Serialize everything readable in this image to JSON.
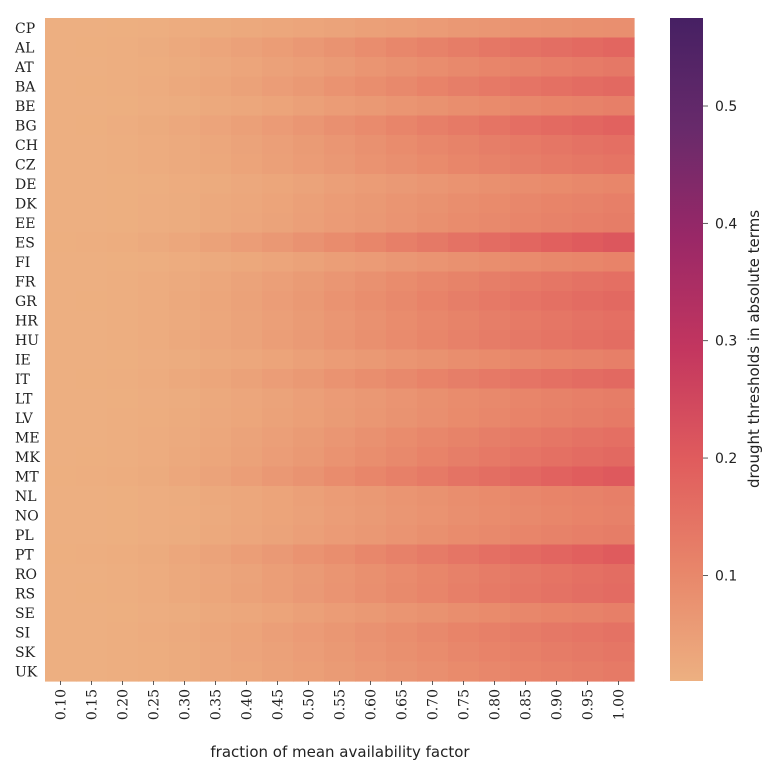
{
  "chart_data": {
    "type": "heatmap",
    "x_categories": [
      "0.10",
      "0.15",
      "0.20",
      "0.25",
      "0.30",
      "0.35",
      "0.40",
      "0.45",
      "0.50",
      "0.55",
      "0.60",
      "0.65",
      "0.70",
      "0.75",
      "0.80",
      "0.85",
      "0.90",
      "0.95",
      "1.00"
    ],
    "y_categories": [
      "CP",
      "AL",
      "AT",
      "BA",
      "BE",
      "BG",
      "CH",
      "CZ",
      "DE",
      "DK",
      "EE",
      "ES",
      "FI",
      "FR",
      "GR",
      "HR",
      "HU",
      "IE",
      "IT",
      "LT",
      "LV",
      "ME",
      "MK",
      "MT",
      "NL",
      "NO",
      "PL",
      "PT",
      "RO",
      "RS",
      "SE",
      "SI",
      "SK",
      "UK"
    ],
    "row_max": [
      0.085,
      0.175,
      0.135,
      0.17,
      0.12,
      0.185,
      0.155,
      0.145,
      0.105,
      0.12,
      0.125,
      0.21,
      0.11,
      0.155,
      0.17,
      0.155,
      0.16,
      0.12,
      0.17,
      0.125,
      0.13,
      0.155,
      0.17,
      0.205,
      0.12,
      0.115,
      0.125,
      0.2,
      0.16,
      0.165,
      0.12,
      0.15,
      0.14,
      0.13
    ],
    "row_min": 0.012,
    "values": [
      [
        0.012,
        0.012,
        0.013,
        0.015,
        0.018,
        0.021,
        0.025,
        0.03,
        0.034,
        0.04,
        0.045,
        0.051,
        0.057,
        0.063,
        0.068,
        0.074,
        0.078,
        0.082,
        0.085
      ],
      [
        0.012,
        0.013,
        0.015,
        0.02,
        0.026,
        0.034,
        0.043,
        0.053,
        0.064,
        0.076,
        0.088,
        0.101,
        0.113,
        0.125,
        0.137,
        0.148,
        0.158,
        0.167,
        0.175
      ],
      [
        0.012,
        0.012,
        0.014,
        0.017,
        0.022,
        0.028,
        0.035,
        0.043,
        0.051,
        0.06,
        0.07,
        0.079,
        0.089,
        0.098,
        0.106,
        0.114,
        0.121,
        0.129,
        0.135
      ],
      [
        0.012,
        0.013,
        0.015,
        0.019,
        0.025,
        0.033,
        0.042,
        0.052,
        0.062,
        0.074,
        0.086,
        0.098,
        0.11,
        0.122,
        0.133,
        0.144,
        0.154,
        0.162,
        0.17
      ],
      [
        0.012,
        0.012,
        0.013,
        0.016,
        0.02,
        0.025,
        0.031,
        0.038,
        0.046,
        0.054,
        0.062,
        0.07,
        0.078,
        0.086,
        0.094,
        0.101,
        0.108,
        0.114,
        0.12
      ],
      [
        0.012,
        0.013,
        0.016,
        0.021,
        0.028,
        0.036,
        0.046,
        0.057,
        0.068,
        0.081,
        0.093,
        0.106,
        0.119,
        0.132,
        0.145,
        0.157,
        0.167,
        0.177,
        0.185
      ],
      [
        0.012,
        0.012,
        0.014,
        0.018,
        0.024,
        0.031,
        0.039,
        0.048,
        0.058,
        0.069,
        0.079,
        0.09,
        0.101,
        0.112,
        0.122,
        0.131,
        0.14,
        0.148,
        0.155
      ],
      [
        0.012,
        0.012,
        0.014,
        0.018,
        0.023,
        0.029,
        0.037,
        0.045,
        0.054,
        0.064,
        0.074,
        0.084,
        0.094,
        0.104,
        0.113,
        0.122,
        0.13,
        0.138,
        0.145
      ],
      [
        0.012,
        0.012,
        0.013,
        0.015,
        0.018,
        0.022,
        0.027,
        0.033,
        0.04,
        0.047,
        0.054,
        0.061,
        0.068,
        0.075,
        0.082,
        0.088,
        0.094,
        0.1,
        0.105
      ],
      [
        0.012,
        0.012,
        0.013,
        0.016,
        0.02,
        0.025,
        0.031,
        0.038,
        0.046,
        0.054,
        0.062,
        0.07,
        0.078,
        0.086,
        0.094,
        0.101,
        0.108,
        0.114,
        0.12
      ],
      [
        0.012,
        0.012,
        0.013,
        0.016,
        0.02,
        0.026,
        0.032,
        0.04,
        0.047,
        0.056,
        0.064,
        0.073,
        0.082,
        0.09,
        0.098,
        0.106,
        0.113,
        0.12,
        0.125
      ],
      [
        0.013,
        0.014,
        0.017,
        0.023,
        0.031,
        0.041,
        0.052,
        0.064,
        0.077,
        0.091,
        0.105,
        0.12,
        0.134,
        0.149,
        0.163,
        0.176,
        0.189,
        0.2,
        0.21
      ],
      [
        0.012,
        0.012,
        0.013,
        0.015,
        0.019,
        0.023,
        0.029,
        0.035,
        0.042,
        0.05,
        0.057,
        0.065,
        0.072,
        0.08,
        0.087,
        0.093,
        0.1,
        0.105,
        0.11
      ],
      [
        0.012,
        0.012,
        0.014,
        0.018,
        0.024,
        0.031,
        0.039,
        0.048,
        0.058,
        0.069,
        0.079,
        0.09,
        0.101,
        0.112,
        0.122,
        0.131,
        0.14,
        0.148,
        0.155
      ],
      [
        0.012,
        0.013,
        0.015,
        0.019,
        0.025,
        0.033,
        0.042,
        0.052,
        0.062,
        0.074,
        0.086,
        0.098,
        0.11,
        0.122,
        0.133,
        0.144,
        0.154,
        0.162,
        0.17
      ],
      [
        0.012,
        0.012,
        0.014,
        0.018,
        0.024,
        0.031,
        0.039,
        0.048,
        0.058,
        0.069,
        0.079,
        0.09,
        0.101,
        0.112,
        0.122,
        0.131,
        0.14,
        0.148,
        0.155
      ],
      [
        0.012,
        0.012,
        0.015,
        0.019,
        0.025,
        0.032,
        0.04,
        0.05,
        0.06,
        0.071,
        0.082,
        0.093,
        0.104,
        0.115,
        0.126,
        0.136,
        0.145,
        0.153,
        0.16
      ],
      [
        0.012,
        0.012,
        0.013,
        0.016,
        0.02,
        0.025,
        0.031,
        0.038,
        0.046,
        0.054,
        0.062,
        0.07,
        0.078,
        0.086,
        0.094,
        0.101,
        0.108,
        0.114,
        0.12
      ],
      [
        0.012,
        0.013,
        0.015,
        0.019,
        0.025,
        0.033,
        0.042,
        0.052,
        0.062,
        0.074,
        0.086,
        0.098,
        0.11,
        0.122,
        0.133,
        0.144,
        0.154,
        0.162,
        0.17
      ],
      [
        0.012,
        0.012,
        0.013,
        0.016,
        0.02,
        0.026,
        0.032,
        0.04,
        0.047,
        0.056,
        0.064,
        0.073,
        0.082,
        0.09,
        0.098,
        0.106,
        0.113,
        0.12,
        0.125
      ],
      [
        0.012,
        0.012,
        0.014,
        0.017,
        0.021,
        0.027,
        0.033,
        0.041,
        0.049,
        0.058,
        0.067,
        0.076,
        0.085,
        0.094,
        0.102,
        0.11,
        0.117,
        0.124,
        0.13
      ],
      [
        0.012,
        0.012,
        0.014,
        0.018,
        0.024,
        0.031,
        0.039,
        0.048,
        0.058,
        0.069,
        0.079,
        0.09,
        0.101,
        0.112,
        0.122,
        0.131,
        0.14,
        0.148,
        0.155
      ],
      [
        0.012,
        0.013,
        0.015,
        0.019,
        0.025,
        0.033,
        0.042,
        0.052,
        0.062,
        0.074,
        0.086,
        0.098,
        0.11,
        0.122,
        0.133,
        0.144,
        0.154,
        0.162,
        0.17
      ],
      [
        0.013,
        0.014,
        0.017,
        0.022,
        0.03,
        0.04,
        0.051,
        0.063,
        0.076,
        0.09,
        0.104,
        0.118,
        0.132,
        0.146,
        0.159,
        0.172,
        0.184,
        0.195,
        0.205
      ],
      [
        0.012,
        0.012,
        0.013,
        0.016,
        0.02,
        0.025,
        0.031,
        0.038,
        0.046,
        0.054,
        0.062,
        0.07,
        0.078,
        0.086,
        0.094,
        0.101,
        0.108,
        0.114,
        0.12
      ],
      [
        0.012,
        0.012,
        0.013,
        0.016,
        0.019,
        0.024,
        0.03,
        0.037,
        0.044,
        0.052,
        0.06,
        0.068,
        0.075,
        0.083,
        0.09,
        0.097,
        0.104,
        0.11,
        0.115
      ],
      [
        0.012,
        0.012,
        0.013,
        0.016,
        0.02,
        0.026,
        0.032,
        0.04,
        0.047,
        0.056,
        0.064,
        0.073,
        0.082,
        0.09,
        0.098,
        0.106,
        0.113,
        0.12,
        0.125
      ],
      [
        0.013,
        0.014,
        0.017,
        0.022,
        0.03,
        0.039,
        0.05,
        0.061,
        0.074,
        0.087,
        0.101,
        0.115,
        0.128,
        0.142,
        0.155,
        0.168,
        0.179,
        0.19,
        0.2
      ],
      [
        0.012,
        0.012,
        0.015,
        0.019,
        0.025,
        0.032,
        0.04,
        0.05,
        0.06,
        0.071,
        0.082,
        0.093,
        0.104,
        0.115,
        0.126,
        0.136,
        0.145,
        0.153,
        0.16
      ],
      [
        0.012,
        0.013,
        0.015,
        0.019,
        0.025,
        0.033,
        0.041,
        0.051,
        0.061,
        0.072,
        0.084,
        0.095,
        0.107,
        0.119,
        0.13,
        0.14,
        0.149,
        0.158,
        0.165
      ],
      [
        0.012,
        0.012,
        0.013,
        0.016,
        0.02,
        0.025,
        0.031,
        0.038,
        0.046,
        0.054,
        0.062,
        0.07,
        0.078,
        0.086,
        0.094,
        0.101,
        0.108,
        0.114,
        0.12
      ],
      [
        0.012,
        0.012,
        0.014,
        0.018,
        0.023,
        0.03,
        0.038,
        0.047,
        0.056,
        0.066,
        0.077,
        0.087,
        0.098,
        0.108,
        0.118,
        0.127,
        0.135,
        0.143,
        0.15
      ],
      [
        0.012,
        0.012,
        0.014,
        0.017,
        0.022,
        0.028,
        0.036,
        0.044,
        0.052,
        0.062,
        0.072,
        0.082,
        0.091,
        0.101,
        0.11,
        0.118,
        0.126,
        0.134,
        0.14
      ],
      [
        0.012,
        0.012,
        0.014,
        0.017,
        0.021,
        0.027,
        0.033,
        0.041,
        0.049,
        0.058,
        0.067,
        0.076,
        0.085,
        0.094,
        0.102,
        0.11,
        0.117,
        0.124,
        0.13
      ]
    ],
    "xlabel": "fraction of mean availability factor",
    "ylabel": "",
    "colorbar": {
      "label": "drought thresholds in absolute terms",
      "min": 0.01,
      "max": 0.575,
      "ticks": [
        0.1,
        0.2,
        0.3,
        0.4,
        0.5
      ],
      "tick_labels": [
        "0.1",
        "0.2",
        "0.3",
        "0.4",
        "0.5"
      ],
      "colormap": "flare",
      "stops": [
        "#edb081",
        "#e8866a",
        "#e05c5d",
        "#c3365f",
        "#9a2867",
        "#682a6b",
        "#462063"
      ]
    }
  }
}
